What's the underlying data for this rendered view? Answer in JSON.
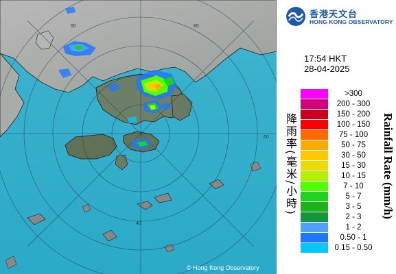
{
  "header": {
    "logo_name_zh": "香港天文台",
    "logo_name_en": "HONG KONG OBSERVATORY"
  },
  "observation": {
    "time": "17:54 HKT",
    "date": "28-04-2025"
  },
  "legend": {
    "title_zh": "降雨率(毫米/小時)",
    "title_en": "Rainfall Rate (mm/h)",
    "items": [
      {
        "label": ">300",
        "color": "#ff00ff"
      },
      {
        "label": "200 - 300",
        "color": "#d6007a"
      },
      {
        "label": "150 - 200",
        "color": "#c8001e"
      },
      {
        "label": "100 - 150",
        "color": "#fa0000"
      },
      {
        "label": "75 - 100",
        "color": "#ff6a00"
      },
      {
        "label": "50 - 75",
        "color": "#ffa800"
      },
      {
        "label": "30 - 50",
        "color": "#ffc800"
      },
      {
        "label": "15 - 30",
        "color": "#e8dc00"
      },
      {
        "label": "10 - 15",
        "color": "#b4f000"
      },
      {
        "label": "7 - 10",
        "color": "#50ff00"
      },
      {
        "label": "5 - 7",
        "color": "#1ed21e"
      },
      {
        "label": "3 - 5",
        "color": "#19b419"
      },
      {
        "label": "2 - 3",
        "color": "#14963c"
      },
      {
        "label": "1 - 2",
        "color": "#50a0ff"
      },
      {
        "label": "0.50 - 1",
        "color": "#1e78ff"
      },
      {
        "label": "0.15 - 0.50",
        "color": "#00c8ff"
      }
    ]
  },
  "map": {
    "range_ring_labels": [
      "60",
      "60",
      "60",
      "40"
    ],
    "copyright": "© Hong Kong Observatory"
  }
}
